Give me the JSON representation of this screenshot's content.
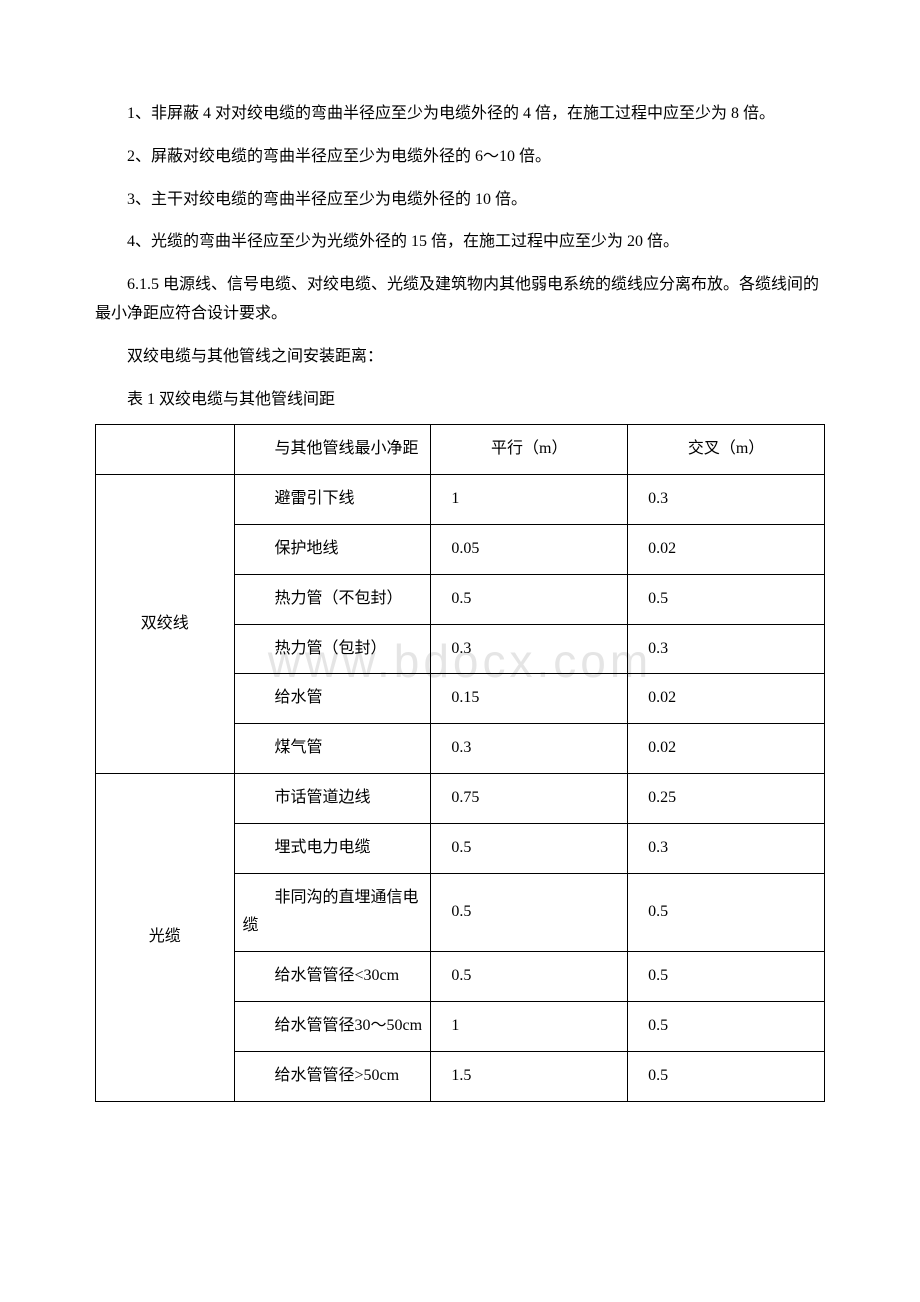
{
  "paragraphs": {
    "p1": "1、非屏蔽 4 对对绞电缆的弯曲半径应至少为电缆外径的 4 倍，在施工过程中应至少为 8 倍。",
    "p2": "2、屏蔽对绞电缆的弯曲半径应至少为电缆外径的 6～10 倍。",
    "p3": "3、主干对绞电缆的弯曲半径应至少为电缆外径的 10 倍。",
    "p4": "4、光缆的弯曲半径应至少为光缆外径的 15 倍，在施工过程中应至少为 20 倍。",
    "p5": "6.1.5 电源线、信号电缆、对绞电缆、光缆及建筑物内其他弱电系统的缆线应分离布放。各缆线间的最小净距应符合设计要求。",
    "p6": "双绞电缆与其他管线之间安装距离："
  },
  "table": {
    "caption": "表 1 双绞电缆与其他管线间距",
    "header": {
      "col2": "与其他管线最小净距",
      "col3": "平行（m）",
      "col4": "交叉（m）"
    },
    "groups": [
      {
        "label": "双绞线",
        "rows": [
          {
            "name": "避雷引下线",
            "parallel": "1",
            "cross": "0.3"
          },
          {
            "name": "保护地线",
            "parallel": "0.05",
            "cross": "0.02"
          },
          {
            "name": "热力管（不包封）",
            "parallel": "0.5",
            "cross": "0.5"
          },
          {
            "name": "热力管（包封）",
            "parallel": "0.3",
            "cross": "0.3"
          },
          {
            "name": "给水管",
            "parallel": "0.15",
            "cross": "0.02"
          },
          {
            "name": "煤气管",
            "parallel": "0.3",
            "cross": "0.02"
          }
        ]
      },
      {
        "label": "光缆",
        "rows": [
          {
            "name": "市话管道边线",
            "parallel": "0.75",
            "cross": "0.25"
          },
          {
            "name": "埋式电力电缆",
            "parallel": "0.5",
            "cross": "0.3"
          },
          {
            "name": "非同沟的直埋通信电缆",
            "parallel": "0.5",
            "cross": "0.5"
          },
          {
            "name": "给水管管径<30cm",
            "parallel": "0.5",
            "cross": "0.5"
          },
          {
            "name": "给水管管径30～50cm",
            "parallel": "1",
            "cross": "0.5"
          },
          {
            "name": "给水管管径>50cm",
            "parallel": "1.5",
            "cross": "0.5"
          }
        ]
      }
    ]
  },
  "watermark": "www.bdocx.com",
  "styling": {
    "font_family": "SimSun",
    "font_size_pt": 12,
    "text_color": "#000000",
    "background_color": "#ffffff",
    "border_color": "#000000",
    "watermark_color": "rgba(180,180,180,0.35)"
  }
}
